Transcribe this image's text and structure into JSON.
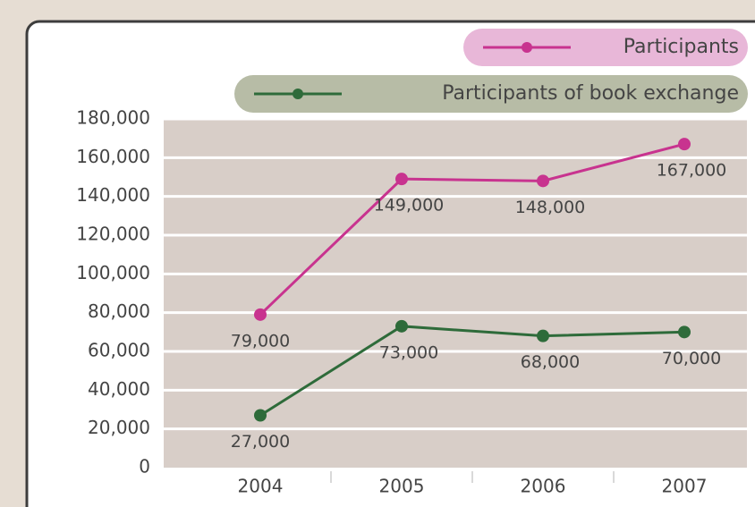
{
  "chart_data": {
    "type": "line",
    "categories": [
      "2004",
      "2005",
      "2006",
      "2007"
    ],
    "series": [
      {
        "name": "Participants",
        "color": "#c8338f",
        "values": [
          79000,
          149000,
          148000,
          167000
        ],
        "value_labels": [
          "79,000",
          "149,000",
          "148,000",
          "167,000"
        ]
      },
      {
        "name": "Participants of book exchange",
        "color": "#2e6b3a",
        "values": [
          27000,
          73000,
          68000,
          70000
        ],
        "value_labels": [
          "27,000",
          "73,000",
          "68,000",
          "70,000"
        ]
      }
    ],
    "ylim": [
      0,
      180000
    ],
    "yticks": [
      0,
      {
        "value": 20000,
        "label": "20,000"
      },
      {
        "value": 40000,
        "label": "40,000"
      },
      {
        "value": 60000,
        "label": "60,000"
      },
      {
        "value": 80000,
        "label": "80,000"
      },
      {
        "value": 100000,
        "label": "100,000"
      },
      {
        "value": 120000,
        "label": "120,000"
      },
      {
        "value": 140000,
        "label": "140,000"
      },
      {
        "value": 160000,
        "label": "160,000"
      },
      {
        "value": 180000,
        "label": "180,000"
      }
    ],
    "grid": true
  }
}
